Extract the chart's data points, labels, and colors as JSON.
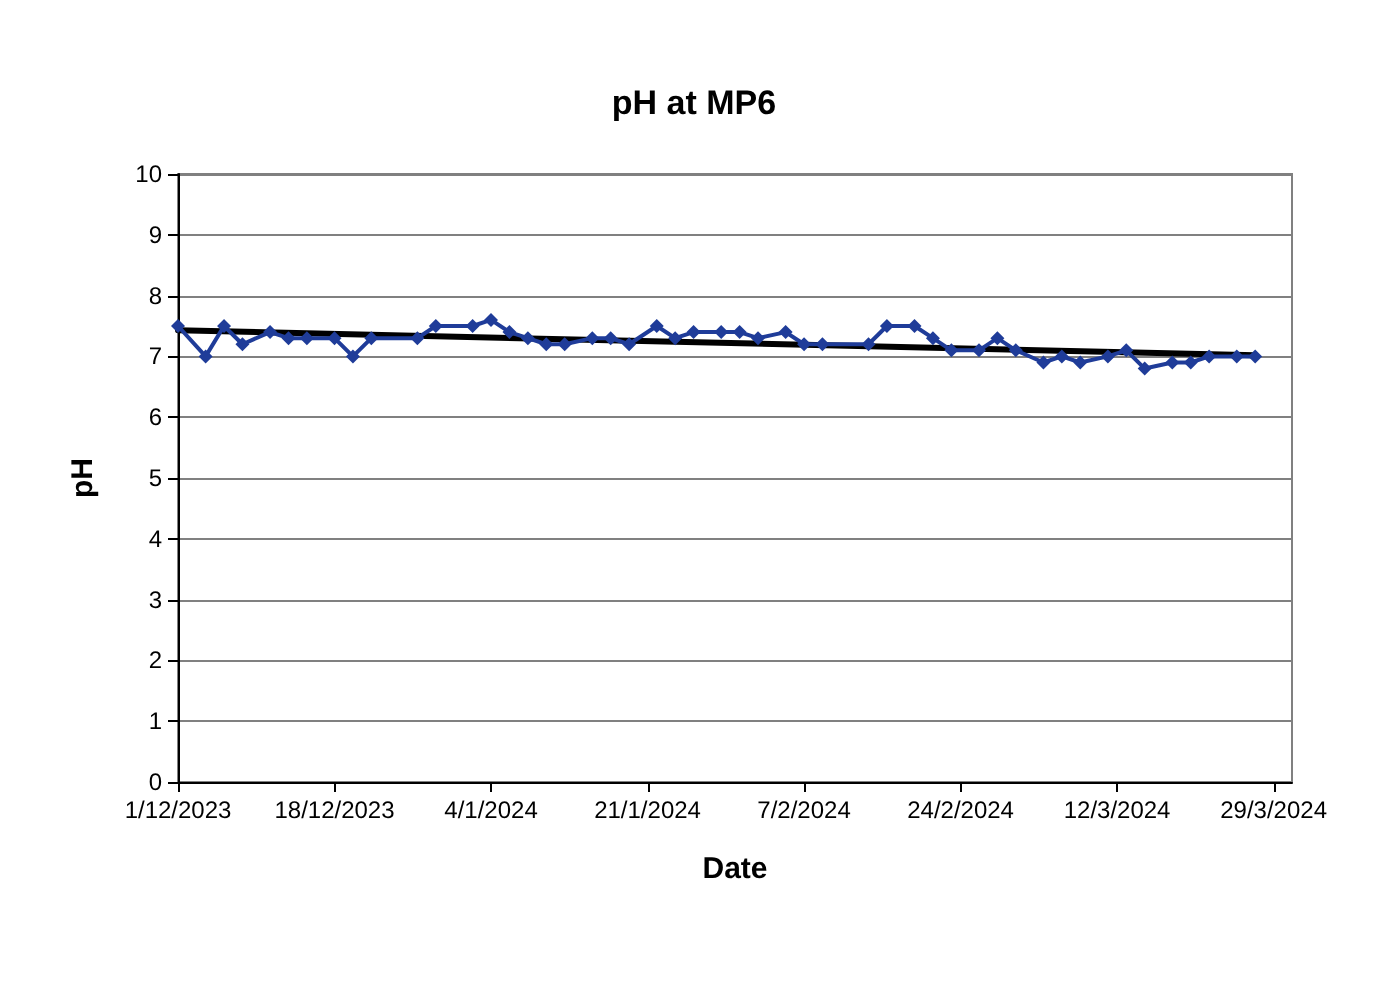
{
  "chart_data": {
    "type": "line",
    "title": "pH at MP6",
    "xlabel": "Date",
    "ylabel": "pH",
    "xlim": [
      "2023-12-01",
      "2024-03-31"
    ],
    "xticks": [
      {
        "value": "2023-12-01",
        "label": "1/12/2023"
      },
      {
        "value": "2023-12-18",
        "label": "18/12/2023"
      },
      {
        "value": "2024-01-04",
        "label": "4/1/2024"
      },
      {
        "value": "2024-01-21",
        "label": "21/1/2024"
      },
      {
        "value": "2024-02-07",
        "label": "7/2/2024"
      },
      {
        "value": "2024-02-24",
        "label": "24/2/2024"
      },
      {
        "value": "2024-03-12",
        "label": "12/3/2024"
      },
      {
        "value": "2024-03-29",
        "label": "29/3/2024"
      }
    ],
    "ylim": [
      0,
      10
    ],
    "yticks": [
      0,
      1,
      2,
      3,
      4,
      5,
      6,
      7,
      8,
      9,
      10
    ],
    "grid": "y",
    "series": [
      {
        "marker": "diamond",
        "color": "#1f3c99",
        "x": [
          "2023-12-01",
          "2023-12-04",
          "2023-12-06",
          "2023-12-08",
          "2023-12-11",
          "2023-12-13",
          "2023-12-15",
          "2023-12-18",
          "2023-12-20",
          "2023-12-22",
          "2023-12-27",
          "2023-12-29",
          "2024-01-02",
          "2024-01-04",
          "2024-01-06",
          "2024-01-08",
          "2024-01-10",
          "2024-01-12",
          "2024-01-15",
          "2024-01-17",
          "2024-01-19",
          "2024-01-22",
          "2024-01-24",
          "2024-01-26",
          "2024-01-29",
          "2024-01-31",
          "2024-02-02",
          "2024-02-05",
          "2024-02-07",
          "2024-02-09",
          "2024-02-14",
          "2024-02-16",
          "2024-02-19",
          "2024-02-21",
          "2024-02-23",
          "2024-02-26",
          "2024-02-28",
          "2024-03-01",
          "2024-03-04",
          "2024-03-06",
          "2024-03-08",
          "2024-03-11",
          "2024-03-13",
          "2024-03-15",
          "2024-03-18",
          "2024-03-20",
          "2024-03-22",
          "2024-03-25",
          "2024-03-27"
        ],
        "values": [
          7.5,
          7.0,
          7.5,
          7.2,
          7.4,
          7.3,
          7.3,
          7.3,
          7.0,
          7.3,
          7.3,
          7.5,
          7.5,
          7.6,
          7.4,
          7.3,
          7.2,
          7.2,
          7.3,
          7.3,
          7.2,
          7.5,
          7.3,
          7.4,
          7.4,
          7.4,
          7.3,
          7.4,
          7.2,
          7.2,
          7.2,
          7.5,
          7.5,
          7.3,
          7.1,
          7.1,
          7.3,
          7.1,
          6.9,
          7.0,
          6.9,
          7.0,
          7.1,
          6.8,
          6.9,
          6.9,
          7.0,
          7.0,
          7.0
        ]
      },
      {
        "marker": "none",
        "color": "#000000",
        "x": [
          "2023-12-01",
          "2024-03-27"
        ],
        "values": [
          7.43,
          7.02
        ]
      }
    ]
  }
}
